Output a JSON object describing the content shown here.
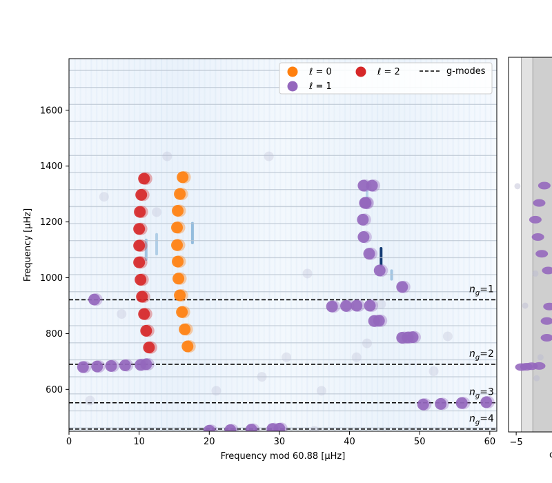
{
  "chart_data": [
    {
      "type": "scatter",
      "title": "",
      "xlabel": "Frequency mod 60.88 [μHz]",
      "ylabel": "Frequency [μHz]",
      "xlim": [
        0,
        61
      ],
      "ylim": [
        450,
        1785
      ],
      "xticks": [
        "0",
        "10",
        "20",
        "30",
        "40",
        "50",
        "60"
      ],
      "yticks": [
        "600",
        "800",
        "1000",
        "1200",
        "1400",
        "1600"
      ],
      "grid": false,
      "legend_placement": "top-right",
      "legend": [
        {
          "label": "ℓ = 0",
          "type": "marker",
          "color": "#ff7f0e"
        },
        {
          "label": "ℓ = 1",
          "type": "marker",
          "color": "#9467bd"
        },
        {
          "label": "ℓ = 2",
          "type": "marker",
          "color": "#d62728"
        },
        {
          "label": "g-modes",
          "type": "dashed-line",
          "color": "#000000"
        }
      ],
      "g_modes": [
        {
          "label_base": "n",
          "label_sub": "g",
          "label_value": "=1",
          "y": 921
        },
        {
          "label_base": "n",
          "label_sub": "g",
          "label_value": "=2",
          "y": 690
        },
        {
          "label_base": "n",
          "label_sub": "g",
          "label_value": "=3",
          "y": 552
        },
        {
          "label_base": "n",
          "label_sub": "g",
          "label_value": "=4",
          "y": 458
        }
      ],
      "horizontal_order_lines": [
        1743,
        1682,
        1621,
        1560,
        1499,
        1438,
        1377,
        1316,
        1255,
        1194,
        1133,
        1072,
        1011,
        950,
        889,
        828,
        767,
        706,
        645,
        584,
        523,
        462
      ],
      "background_ridges": [
        {
          "x": 11.0,
          "y0": 1060,
          "y1": 1140,
          "intensity": 0.45
        },
        {
          "x": 12.5,
          "y0": 1080,
          "y1": 1160,
          "intensity": 0.35
        },
        {
          "x": 17.6,
          "y0": 1120,
          "y1": 1200,
          "intensity": 0.55
        },
        {
          "x": 44.5,
          "y0": 1040,
          "y1": 1110,
          "intensity": 0.95
        },
        {
          "x": 46.0,
          "y0": 990,
          "y1": 1030,
          "intensity": 0.45
        },
        {
          "x": 42.5,
          "y0": 1250,
          "y1": 1330,
          "intensity": 0.3
        }
      ],
      "series": [
        {
          "name": "ℓ = 0",
          "color": "#ff7f0e",
          "points": [
            [
              16.2,
              1360
            ],
            [
              15.8,
              1300
            ],
            [
              15.5,
              1240
            ],
            [
              15.4,
              1180
            ],
            [
              15.4,
              1117
            ],
            [
              15.5,
              1058
            ],
            [
              15.6,
              997
            ],
            [
              15.8,
              937
            ],
            [
              16.1,
              877
            ],
            [
              16.5,
              815
            ],
            [
              16.9,
              754
            ]
          ]
        },
        {
          "name": "ℓ = 1",
          "color": "#9467bd",
          "points": [
            [
              3.6,
              922
            ],
            [
              2.0,
              680
            ],
            [
              4.0,
              682
            ],
            [
              6.0,
              684
            ],
            [
              8.0,
              686
            ],
            [
              10.2,
              688
            ],
            [
              11.0,
              690
            ],
            [
              20.0,
              452
            ],
            [
              23.0,
              454
            ],
            [
              26.0,
              456
            ],
            [
              29.0,
              458
            ],
            [
              30.0,
              459
            ],
            [
              37.5,
              897
            ],
            [
              39.5,
              899
            ],
            [
              41.0,
              900
            ],
            [
              42.0,
              1330
            ],
            [
              42.2,
              1268
            ],
            [
              41.9,
              1208
            ],
            [
              42.0,
              1146
            ],
            [
              42.8,
              1086
            ],
            [
              44.3,
              1026
            ],
            [
              47.5,
              967
            ],
            [
              43.5,
              845
            ],
            [
              47.5,
              785
            ],
            [
              49.0,
              787
            ],
            [
              50.5,
              546
            ],
            [
              53.0,
              548
            ],
            [
              56.0,
              551
            ],
            [
              59.5,
              554
            ],
            [
              43.2,
              1330
            ],
            [
              42.3,
              1268
            ],
            [
              42.9,
              900
            ],
            [
              44.2,
              846
            ],
            [
              48.3,
              786
            ]
          ]
        },
        {
          "name": "ℓ = 2",
          "color": "#d62728",
          "points": [
            [
              10.7,
              1355
            ],
            [
              10.3,
              1297
            ],
            [
              10.1,
              1236
            ],
            [
              10.0,
              1175
            ],
            [
              10.0,
              1115
            ],
            [
              10.0,
              1055
            ],
            [
              10.2,
              993
            ],
            [
              10.4,
              932
            ],
            [
              10.7,
              870
            ],
            [
              11.0,
              810
            ],
            [
              11.4,
              750
            ]
          ]
        }
      ],
      "faint_points": [
        [
          14.0,
          1435
        ],
        [
          28.5,
          1435
        ],
        [
          5.0,
          1290
        ],
        [
          34.0,
          1015
        ],
        [
          12.5,
          1235
        ],
        [
          7.5,
          870
        ],
        [
          48.0,
          780
        ],
        [
          54.0,
          790
        ],
        [
          31.0,
          715
        ],
        [
          21.0,
          595
        ],
        [
          36.0,
          595
        ],
        [
          27.5,
          645
        ],
        [
          52.0,
          665
        ],
        [
          3.0,
          560
        ],
        [
          35.0,
          452
        ],
        [
          42.5,
          765
        ],
        [
          44.5,
          905
        ],
        [
          41.0,
          715
        ]
      ]
    },
    {
      "type": "scatter",
      "title": "",
      "xlabel": "c",
      "ylabel": "",
      "xlim": [
        -5.6,
        -2.2
      ],
      "xticks": [
        "−5"
      ],
      "grid": false,
      "shaded_bands": [
        {
          "x0": -4.6,
          "x1": -3.7,
          "color": "#e2e2e2"
        },
        {
          "x0": -3.7,
          "x1": -2.2,
          "color": "#cfcfcf"
        }
      ],
      "series": [
        {
          "name": "ℓ = 1",
          "color": "#9467bd",
          "points": [
            [
              -2.8,
              1330
            ],
            [
              -3.2,
              1268
            ],
            [
              -3.5,
              1208
            ],
            [
              -3.3,
              1146
            ],
            [
              -3.0,
              1086
            ],
            [
              -2.5,
              1026
            ],
            [
              -2.4,
              897
            ],
            [
              -2.6,
              845
            ],
            [
              -2.6,
              785
            ],
            [
              -4.6,
              680
            ],
            [
              -4.2,
              681
            ],
            [
              -3.8,
              683
            ],
            [
              -3.2,
              684
            ]
          ]
        }
      ],
      "faint_points": [
        [
          -4.9,
          1328
        ],
        [
          -4.3,
          900
        ],
        [
          -3.5,
          1015
        ],
        [
          -3.4,
          640
        ],
        [
          -3.1,
          715
        ]
      ]
    }
  ]
}
